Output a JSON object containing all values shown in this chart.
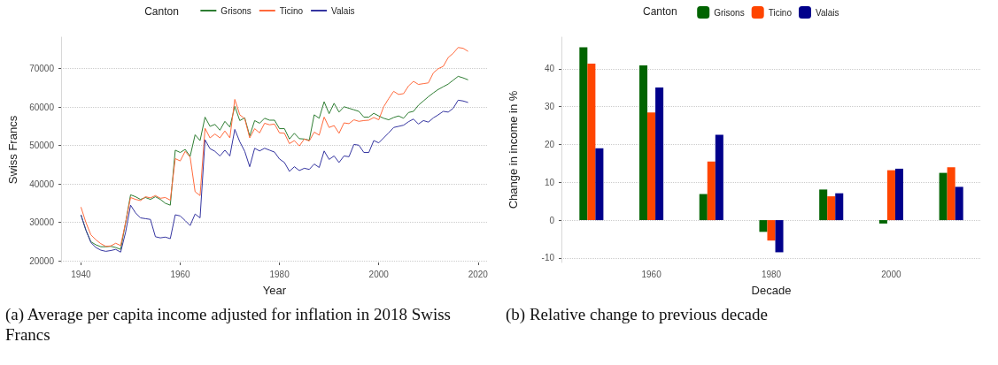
{
  "chart_data": [
    {
      "type": "line",
      "xlabel": "Year",
      "ylabel": "Swiss Francs",
      "legend_title": "Canton",
      "legend": "top",
      "grid": "y",
      "marker": "none",
      "line_style": "solid",
      "annotations": [
        "(a) Average per capita income adjusted for inflation in 2018 Swiss Francs"
      ],
      "x": [
        1940,
        1941,
        1942,
        1943,
        1944,
        1945,
        1946,
        1947,
        1948,
        1949,
        1950,
        1951,
        1952,
        1953,
        1954,
        1955,
        1956,
        1957,
        1958,
        1959,
        1960,
        1961,
        1962,
        1963,
        1964,
        1965,
        1966,
        1967,
        1968,
        1969,
        1970,
        1971,
        1972,
        1973,
        1974,
        1975,
        1976,
        1977,
        1978,
        1979,
        1980,
        1981,
        1982,
        1983,
        1984,
        1985,
        1986,
        1987,
        1988,
        1989,
        1990,
        1991,
        1992,
        1993,
        1994,
        1995,
        1996,
        1997,
        1998,
        1999,
        2000,
        2001,
        2002,
        2003,
        2004,
        2005,
        2006,
        2007,
        2008,
        2009,
        2010,
        2011,
        2012,
        2013,
        2014,
        2015,
        2016,
        2017,
        2018
      ],
      "xlim": [
        1936,
        2022
      ],
      "xticks": [
        1940,
        1960,
        1980,
        2000,
        2020
      ],
      "ylim": [
        19600,
        78200
      ],
      "yticks": [
        20000,
        30000,
        40000,
        50000,
        60000,
        70000
      ],
      "series": [
        {
          "name": "Grisons",
          "color": "#2e7d32",
          "values": [
            32000,
            28000,
            25000,
            24200,
            23700,
            23700,
            23800,
            23500,
            23000,
            30000,
            37200,
            36700,
            36000,
            36500,
            36000,
            36700,
            36000,
            35000,
            34500,
            48800,
            48200,
            49000,
            47200,
            52800,
            51300,
            57400,
            55000,
            55500,
            54000,
            56300,
            54800,
            60200,
            56500,
            57200,
            52500,
            56500,
            55800,
            57100,
            56600,
            56600,
            54400,
            54400,
            51700,
            53200,
            51800,
            51700,
            51400,
            58000,
            57100,
            61400,
            58300,
            61000,
            58700,
            60100,
            59700,
            59300,
            58900,
            57400,
            57400,
            58400,
            57700,
            57100,
            56700,
            57300,
            57700,
            57100,
            58600,
            58900,
            60500,
            61600,
            62700,
            63700,
            64600,
            65300,
            66000,
            67000,
            68000,
            67600,
            67100
          ]
        },
        {
          "name": "Ticino",
          "color": "#ff6a3d",
          "values": [
            34000,
            30000,
            26800,
            25500,
            24500,
            23800,
            23900,
            24600,
            24000,
            30000,
            36500,
            36000,
            35700,
            36700,
            36400,
            37000,
            36300,
            36500,
            35800,
            46600,
            46000,
            48500,
            47000,
            38000,
            37000,
            54500,
            52000,
            53000,
            52000,
            53800,
            52000,
            62000,
            58000,
            57000,
            52000,
            54400,
            53300,
            55800,
            55400,
            55600,
            53300,
            53200,
            50500,
            51300,
            49900,
            51700,
            51200,
            53500,
            52700,
            57400,
            54700,
            55200,
            53200,
            55900,
            55700,
            56700,
            56300,
            56500,
            56600,
            57300,
            56700,
            60100,
            62200,
            64100,
            63300,
            63500,
            65500,
            66700,
            65900,
            66100,
            66300,
            68900,
            70000,
            70600,
            72900,
            74000,
            75500,
            75300,
            74500
          ]
        },
        {
          "name": "Valais",
          "color": "#3535a0",
          "values": [
            32000,
            28000,
            24800,
            23500,
            22800,
            22500,
            22700,
            23000,
            22300,
            27500,
            34500,
            32500,
            31200,
            31000,
            30800,
            26300,
            26000,
            26200,
            25800,
            32000,
            31700,
            30500,
            29200,
            32200,
            31200,
            51500,
            49200,
            48500,
            47300,
            48800,
            47300,
            54200,
            51000,
            48500,
            44500,
            49300,
            48600,
            49300,
            48800,
            48300,
            46500,
            45600,
            43300,
            44500,
            43500,
            44100,
            43800,
            45200,
            44300,
            48600,
            46400,
            47300,
            45600,
            47300,
            47100,
            50300,
            50100,
            48200,
            48200,
            51300,
            50700,
            52000,
            53300,
            54700,
            55000,
            55300,
            56200,
            56900,
            55600,
            56500,
            56100,
            57200,
            58000,
            58900,
            58700,
            59700,
            61800,
            61600,
            61200
          ]
        }
      ]
    },
    {
      "type": "bar",
      "xlabel": "Decade",
      "ylabel": "Change in income in %",
      "legend_title": "Canton",
      "legend": "top",
      "grid": "y",
      "annotations": [
        "(b) Relative change to previous decade"
      ],
      "categories": [
        null,
        "1960",
        null,
        "1980",
        null,
        "2000",
        null
      ],
      "ylim": [
        -11.2,
        48.4
      ],
      "yticks": [
        -10,
        0,
        10,
        20,
        30,
        40
      ],
      "series": [
        {
          "name": "Grisons",
          "color": "#006400",
          "values": [
            45.7,
            40.9,
            6.9,
            -3.1,
            8.1,
            -0.9,
            12.5
          ]
        },
        {
          "name": "Ticino",
          "color": "#ff4500",
          "values": [
            41.4,
            28.5,
            15.5,
            -5.4,
            6.3,
            13.2,
            14.0
          ]
        },
        {
          "name": "Valais",
          "color": "#00008b",
          "values": [
            19.0,
            35.1,
            22.6,
            -8.5,
            7.1,
            13.6,
            8.8
          ]
        }
      ]
    }
  ]
}
